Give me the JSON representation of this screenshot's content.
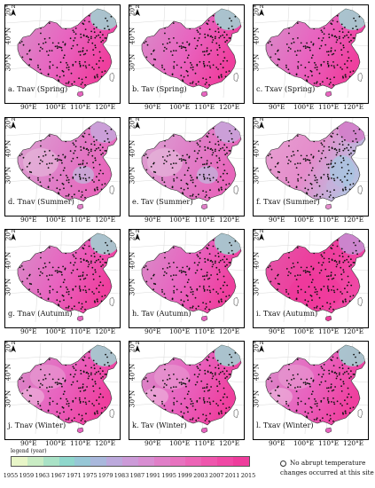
{
  "panels": [
    {
      "label": "a. Tnav (Spring)",
      "season": "spring",
      "hue": "warm"
    },
    {
      "label": "b. Tav (Spring)",
      "season": "spring",
      "hue": "warm"
    },
    {
      "label": "c. Txav (Spring)",
      "season": "spring",
      "hue": "warm"
    },
    {
      "label": "d. Tnav (Summer)",
      "season": "summer",
      "hue": "mixed"
    },
    {
      "label": "e. Tav (Summer)",
      "season": "summer",
      "hue": "mixed"
    },
    {
      "label": "f. Txav (Summer)",
      "season": "summer",
      "hue": "cool"
    },
    {
      "label": "g. Tnav (Autumn)",
      "season": "autumn",
      "hue": "warm"
    },
    {
      "label": "h. Tav (Autumn)",
      "season": "autumn",
      "hue": "warm"
    },
    {
      "label": "i. Txav (Autumn)",
      "season": "autumn",
      "hue": "hot"
    },
    {
      "label": "j. Tnav (Winter)",
      "season": "winter",
      "hue": "warm"
    },
    {
      "label": "k. Tav (Winter)",
      "season": "winter",
      "hue": "warm"
    },
    {
      "label": "l. Txav (Winter)",
      "season": "winter",
      "hue": "warm"
    }
  ],
  "map_text": {
    "north": "N",
    "lat_labels": [
      "40°N",
      "30°N",
      "20°N"
    ],
    "lon_labels": [
      "90°E",
      "100°E",
      "110°E",
      "120°E"
    ]
  },
  "legend": {
    "title": "legend (year)",
    "years": [
      "1955",
      "1959",
      "1963",
      "1967",
      "1971",
      "1975",
      "1979",
      "1983",
      "1987",
      "1991",
      "1995",
      "1999",
      "2003",
      "2007",
      "2011",
      "2015"
    ],
    "colors": [
      "#e8f6c8",
      "#c9ecc4",
      "#a9e2c6",
      "#8fd7cc",
      "#97c7d6",
      "#a9b8dc",
      "#bca9dc",
      "#cc9bd8",
      "#d88ed2",
      "#e07fc8",
      "#e772bf",
      "#ec64b6",
      "#ef56ad",
      "#f048a5",
      "#ee3c9c"
    ]
  },
  "no_change_note": "No abrupt temperature changes occurred at this site"
}
